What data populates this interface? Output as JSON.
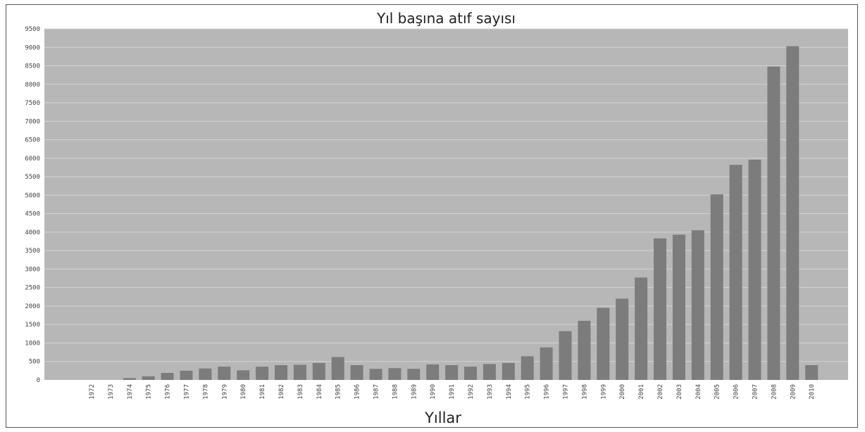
{
  "chart_data": {
    "type": "bar",
    "title": "Yıl başına atıf sayısı",
    "xlabel": "Yıllar",
    "ylabel": "",
    "ylim": [
      0,
      9500
    ],
    "ytick_step": 500,
    "grid": true,
    "colors": {
      "plot_bg": "#b7b7b7",
      "bar": "#7c7c7c",
      "grid": "#d4d4d4",
      "frame": "#555555"
    },
    "categories": [
      "1972",
      "1973",
      "1974",
      "1975",
      "1976",
      "1977",
      "1978",
      "1979",
      "1980",
      "1981",
      "1982",
      "1983",
      "1984",
      "1985",
      "1986",
      "1987",
      "1988",
      "1989",
      "1990",
      "1991",
      "1992",
      "1993",
      "1994",
      "1995",
      "1996",
      "1997",
      "1998",
      "1999",
      "2000",
      "2001",
      "2002",
      "2003",
      "2004",
      "2005",
      "2006",
      "2007",
      "2008",
      "2009",
      "2010"
    ],
    "values": [
      0,
      0,
      50,
      100,
      190,
      250,
      310,
      360,
      260,
      360,
      400,
      410,
      460,
      620,
      400,
      300,
      320,
      300,
      420,
      400,
      360,
      430,
      460,
      640,
      880,
      1320,
      1600,
      1950,
      2200,
      2770,
      3830,
      3930,
      4050,
      5020,
      5820,
      5960,
      8480,
      9030,
      400
    ]
  }
}
